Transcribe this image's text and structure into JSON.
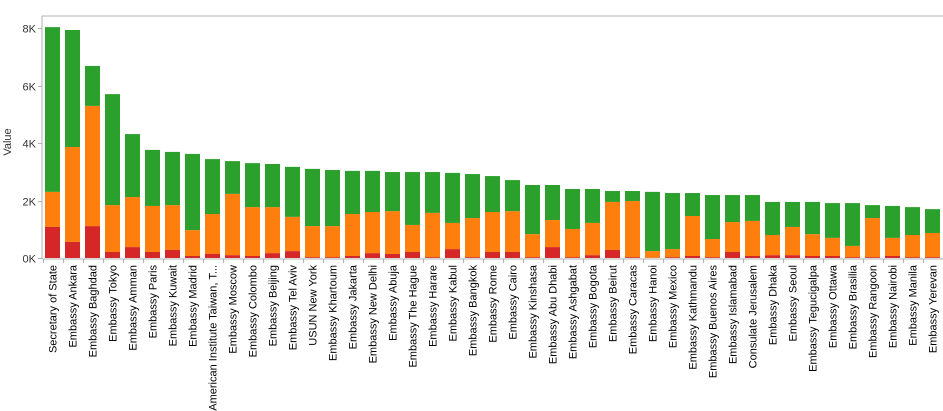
{
  "chart_data": {
    "type": "bar",
    "stacked": true,
    "title": "",
    "xlabel": "",
    "ylabel": "Value",
    "ylim": [
      0,
      8400
    ],
    "yticks": [
      0,
      2000,
      4000,
      6000,
      8000
    ],
    "ytick_labels": [
      "0K",
      "2K",
      "4K",
      "6K",
      "8K"
    ],
    "grid": false,
    "legend": "none",
    "categories": [
      "Secretary of State",
      "Embassy Ankara",
      "Embassy Baghdad",
      "Embassy Tokyo",
      "Embassy Amman",
      "Embassy Paris",
      "Embassy Kuwait",
      "Embassy Madrid",
      "American Institute Taiwan, T...",
      "Embassy Moscow",
      "Embassy Colombo",
      "Embassy Beijing",
      "Embassy Tel Aviv",
      "USUN New York",
      "Embassy Khartoum",
      "Embassy Jakarta",
      "Embassy New Delhi",
      "Embassy Abuja",
      "Embassy The Hague",
      "Embassy Harare",
      "Embassy Kabul",
      "Embassy Bangkok",
      "Embassy Rome",
      "Embassy Cairo",
      "Embassy Kinshasa",
      "Embassy Abu Dhabi",
      "Embassy Ashgabat",
      "Embassy Bogota",
      "Embassy Beirut",
      "Embassy Caracas",
      "Embassy Hanoi",
      "Embassy Mexico",
      "Embassy Kathmandu",
      "Embassy Buenos Aires",
      "Embassy Islamabad",
      "Consulate Jerusalem",
      "Embassy Dhaka",
      "Embassy Seoul",
      "Embassy Tegucigalpa",
      "Embassy Ottawa",
      "Embassy Brasilia",
      "Embassy Rangoon",
      "Embassy Nairobi",
      "Embassy Manila",
      "Embassy Yerevan"
    ],
    "series": [
      {
        "name": "red",
        "color": "#d62728",
        "values": [
          1080,
          560,
          1110,
          210,
          380,
          210,
          280,
          70,
          140,
          100,
          70,
          170,
          240,
          30,
          30,
          70,
          170,
          140,
          210,
          30,
          310,
          30,
          210,
          210,
          30,
          380,
          30,
          100,
          280,
          30,
          10,
          30,
          70,
          30,
          210,
          70,
          100,
          100,
          70,
          70,
          30,
          30,
          70,
          30,
          30
        ]
      },
      {
        "name": "orange",
        "color": "#ff7f0e",
        "values": [
          1220,
          3300,
          4180,
          1630,
          1740,
          1600,
          1560,
          900,
          1390,
          2130,
          1700,
          1600,
          1190,
          1080,
          1080,
          1460,
          1430,
          1490,
          940,
          1540,
          910,
          1360,
          1390,
          1420,
          800,
          940,
          980,
          1120,
          1670,
          1950,
          230,
          280,
          1390,
          630,
          1040,
          1220,
          700,
          980,
          760,
          630,
          390,
          1360,
          630,
          770,
          840
        ]
      },
      {
        "name": "green",
        "color": "#2ca02c",
        "values": [
          5730,
          4070,
          1390,
          3860,
          2190,
          1950,
          1850,
          2650,
          1910,
          1140,
          1530,
          1500,
          1740,
          1990,
          1950,
          1500,
          1430,
          1360,
          1840,
          1420,
          1740,
          1530,
          1250,
          1080,
          1710,
          1220,
          1390,
          1180,
          380,
          350,
          2060,
          1950,
          800,
          1530,
          940,
          900,
          1150,
          870,
          1120,
          1210,
          1490,
          450,
          1110,
          970,
          830
        ]
      }
    ]
  }
}
